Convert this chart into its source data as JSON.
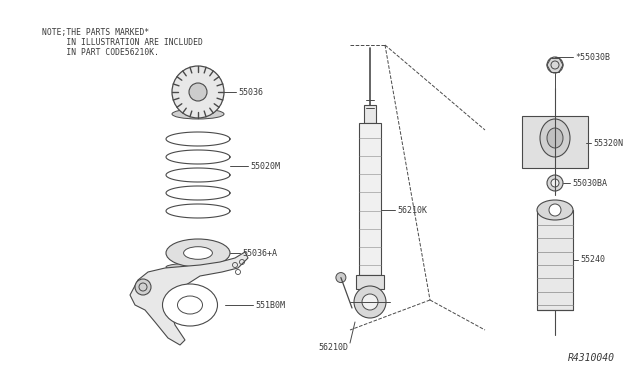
{
  "background_color": "#ffffff",
  "diagram_id": "R4310040",
  "note_line1": "NOTE;THE PARTS MARKED*",
  "note_line2": "     IN ILLUSTRATION ARE INCLUDED",
  "note_line3": "     IN PART CODE56210K.",
  "line_color": "#4a4a4a",
  "text_color": "#3a3a3a",
  "font_size": 6.0,
  "note_font_size": 5.8,
  "parts": {
    "55036": {
      "label": "55036"
    },
    "55020M": {
      "label": "55020M"
    },
    "55036A": {
      "label": "55036+A"
    },
    "551B0M": {
      "label": "551B0M"
    },
    "56210K": {
      "label": "56210K"
    },
    "56210D": {
      "label": "56210D"
    },
    "55030B": {
      "label": "*55030B"
    },
    "55320N": {
      "label": "55320N"
    },
    "55030BA": {
      "label": "55030BA"
    },
    "55240": {
      "label": "55240"
    }
  }
}
